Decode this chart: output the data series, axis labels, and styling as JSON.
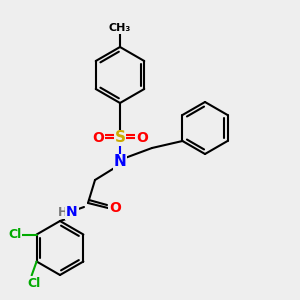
{
  "background_color": "#eeeeee",
  "bond_color": "#000000",
  "atom_colors": {
    "N": "#0000ff",
    "O": "#ff0000",
    "S": "#ccaa00",
    "Cl": "#00aa00",
    "H": "#777777",
    "C": "#000000"
  },
  "figsize": [
    3.0,
    3.0
  ],
  "dpi": 100
}
